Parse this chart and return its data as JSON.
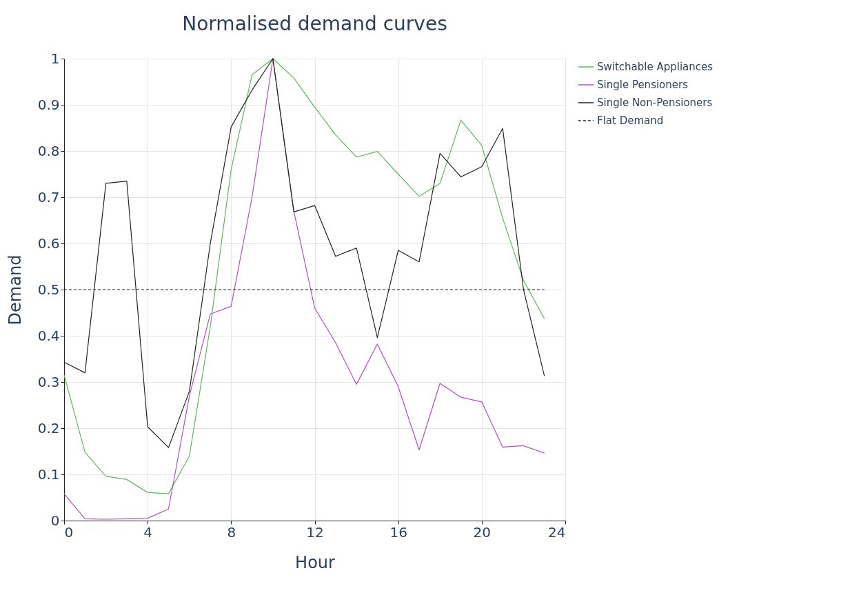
{
  "chart_data": {
    "type": "line",
    "title": "Normalised demand curves",
    "xlabel": "Hour",
    "ylabel": "Demand",
    "x": [
      0,
      1,
      2,
      3,
      4,
      5,
      6,
      7,
      8,
      9,
      10,
      11,
      12,
      13,
      14,
      15,
      16,
      17,
      18,
      19,
      20,
      21,
      22,
      23
    ],
    "series": [
      {
        "name": "Switchable Appliances",
        "color": "#5cb85c",
        "line_style": "solid",
        "values": [
          0.315,
          0.148,
          0.096,
          0.089,
          0.061,
          0.058,
          0.14,
          0.42,
          0.76,
          0.965,
          1.0,
          0.958,
          0.895,
          0.835,
          0.787,
          0.799,
          0.75,
          0.702,
          0.73,
          0.867,
          0.812,
          0.655,
          0.52,
          0.437
        ]
      },
      {
        "name": "Single Pensioners",
        "color": "#b04fc0",
        "line_style": "solid",
        "values": [
          0.058,
          0.004,
          0.003,
          0.004,
          0.005,
          0.025,
          0.27,
          0.447,
          0.464,
          0.7,
          1.0,
          0.67,
          0.46,
          0.385,
          0.295,
          0.382,
          0.29,
          0.153,
          0.297,
          0.267,
          0.257,
          0.159,
          0.162,
          0.146
        ]
      },
      {
        "name": "Single Non-Pensioners",
        "color": "#222222",
        "line_style": "solid",
        "values": [
          0.343,
          0.32,
          0.73,
          0.735,
          0.203,
          0.158,
          0.28,
          0.6,
          0.852,
          0.932,
          1.0,
          0.668,
          0.682,
          0.572,
          0.59,
          0.396,
          0.585,
          0.56,
          0.795,
          0.744,
          0.766,
          0.849,
          0.5,
          0.313
        ]
      },
      {
        "name": "Flat Demand",
        "color": "#222222",
        "line_style": "dashed",
        "values": [
          0.5,
          0.5,
          0.5,
          0.5,
          0.5,
          0.5,
          0.5,
          0.5,
          0.5,
          0.5,
          0.5,
          0.5,
          0.5,
          0.5,
          0.5,
          0.5,
          0.5,
          0.5,
          0.5,
          0.5,
          0.5,
          0.5,
          0.5,
          0.5
        ]
      }
    ],
    "xlim": [
      0,
      24
    ],
    "xticks": [
      0,
      4,
      8,
      12,
      16,
      20,
      24
    ],
    "ylim": [
      0,
      1
    ],
    "yticks": [
      0,
      0.1,
      0.2,
      0.3,
      0.4,
      0.5,
      0.6,
      0.7,
      0.8,
      0.9,
      1
    ],
    "grid": true,
    "legend": "top right",
    "marker": "none"
  }
}
